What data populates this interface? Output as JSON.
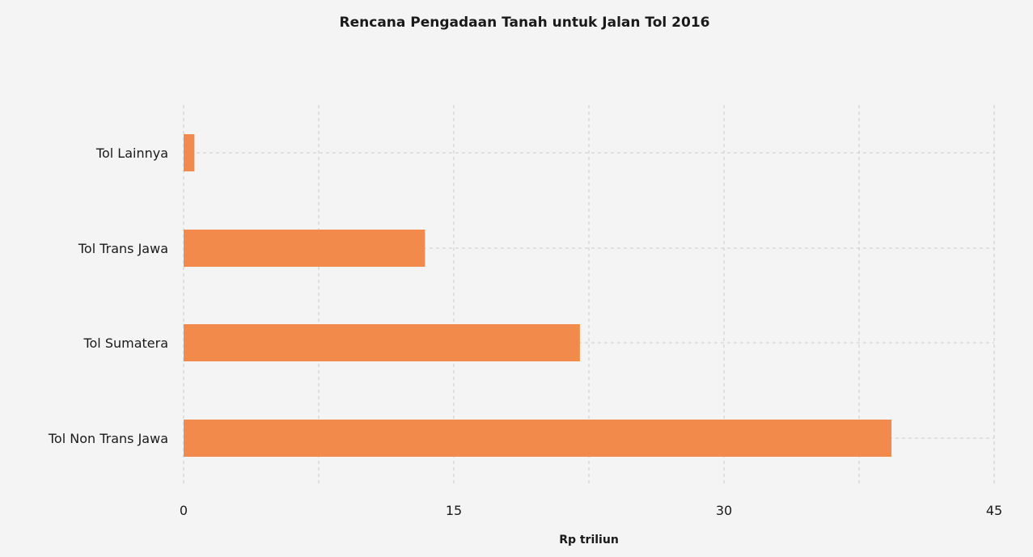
{
  "chart_data": {
    "type": "bar",
    "orientation": "horizontal",
    "title": "Rencana Pengadaan Tanah untuk Jalan Tol 2016",
    "xlabel": "Rp triliun",
    "ylabel": "",
    "categories": [
      "Tol Lainnya",
      "Tol Trans Jawa",
      "Tol Sumatera",
      "Tol Non Trans Jawa"
    ],
    "values": [
      0.6,
      13.4,
      22.0,
      39.3
    ],
    "xlim": [
      0,
      45
    ],
    "x_ticks": [
      0,
      15,
      30,
      45
    ],
    "grid": true,
    "bar_color": "#f28a4c"
  }
}
